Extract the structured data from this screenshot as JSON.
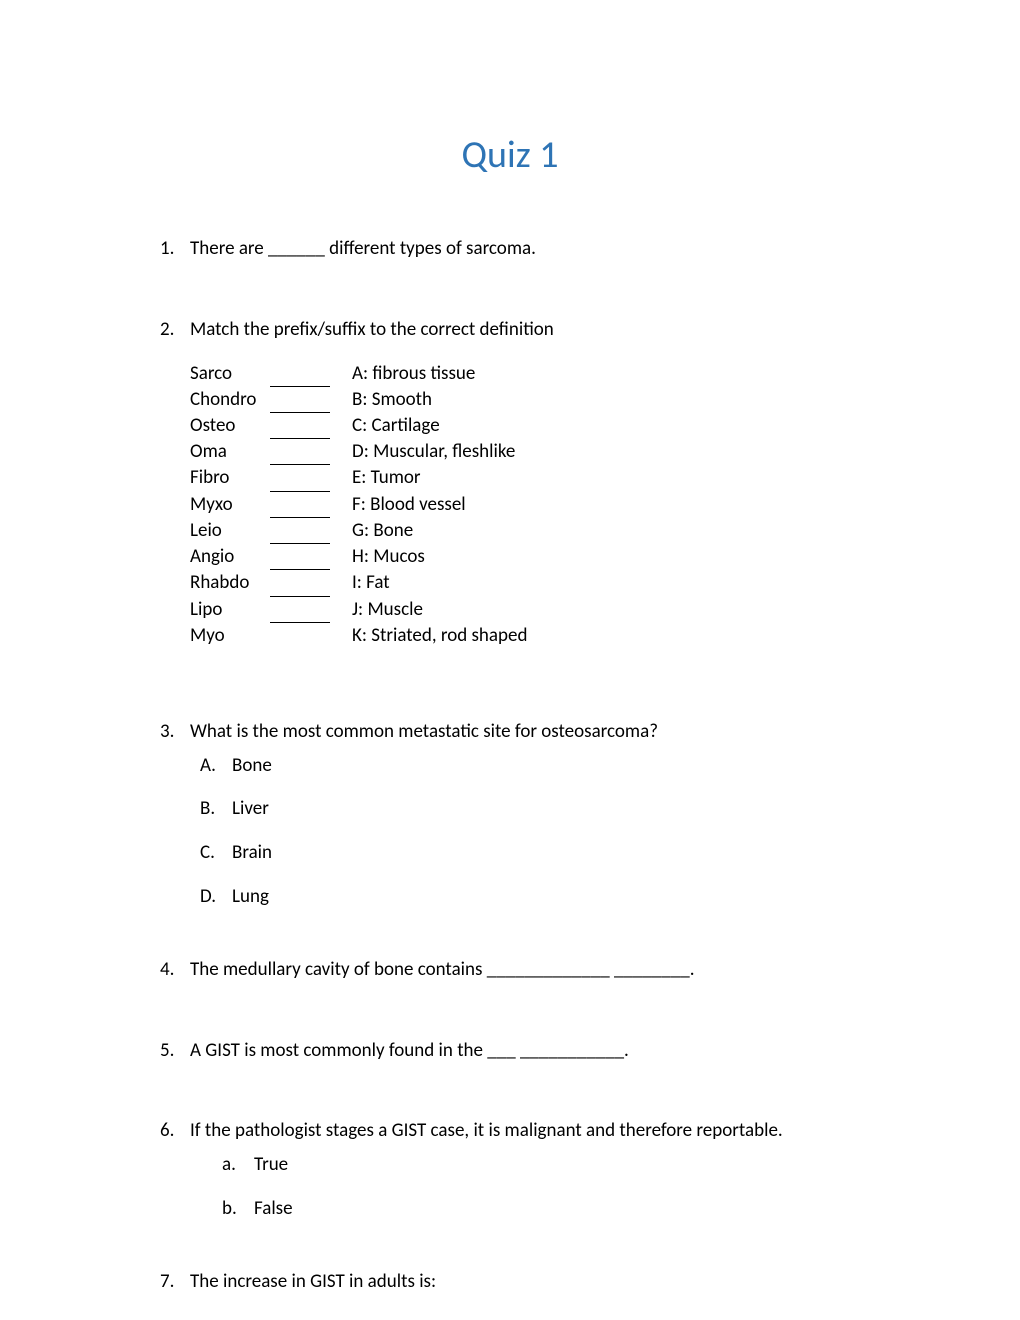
{
  "title": {
    "text": "Quiz 1",
    "color": "#2e74b5"
  },
  "q1": {
    "num": "1.",
    "text": "There are ______ different types of sarcoma."
  },
  "q2": {
    "num": "2.",
    "text": "Match the prefix/suffix to the correct definition",
    "rows": [
      {
        "term": "Sarco",
        "def": "A: fibrous tissue",
        "blank": true
      },
      {
        "term": "Chondro",
        "def": "B: Smooth",
        "blank": true
      },
      {
        "term": "Osteo",
        "def": "C: Cartilage",
        "blank": true
      },
      {
        "term": "Oma",
        "def": "D: Muscular, fleshlike",
        "blank": true
      },
      {
        "term": "Fibro",
        "def": "E: Tumor",
        "blank": true
      },
      {
        "term": "Myxo",
        "def": "F: Blood vessel",
        "blank": true
      },
      {
        "term": "Leio",
        "def": "G: Bone",
        "blank": true
      },
      {
        "term": "Angio",
        "def": "H: Mucos",
        "blank": true
      },
      {
        "term": "Rhabdo",
        "def": "I: Fat",
        "blank": true
      },
      {
        "term": "Lipo",
        "def": "J: Muscle",
        "blank": true
      },
      {
        "term": "Myo",
        "def": "K: Striated, rod shaped",
        "blank": false
      }
    ]
  },
  "q3": {
    "num": "3.",
    "text": "What is the most common metastatic site for osteosarcoma?",
    "options": [
      {
        "label": "A.",
        "text": "Bone"
      },
      {
        "label": "B.",
        "text": "Liver"
      },
      {
        "label": "C.",
        "text": "Brain"
      },
      {
        "label": "D.",
        "text": "Lung"
      }
    ]
  },
  "q4": {
    "num": "4.",
    "text": "The medullary cavity of bone contains _____________ ________."
  },
  "q5": {
    "num": "5.",
    "text": "A GIST is most commonly found in the ___ ___________."
  },
  "q6": {
    "num": "6.",
    "text": "If the pathologist stages a GIST case, it is malignant and therefore reportable.",
    "options": [
      {
        "label": "a.",
        "text": "True"
      },
      {
        "label": "b.",
        "text": "False"
      }
    ]
  },
  "q7": {
    "num": "7.",
    "text": "The increase in GIST in adults is:"
  }
}
